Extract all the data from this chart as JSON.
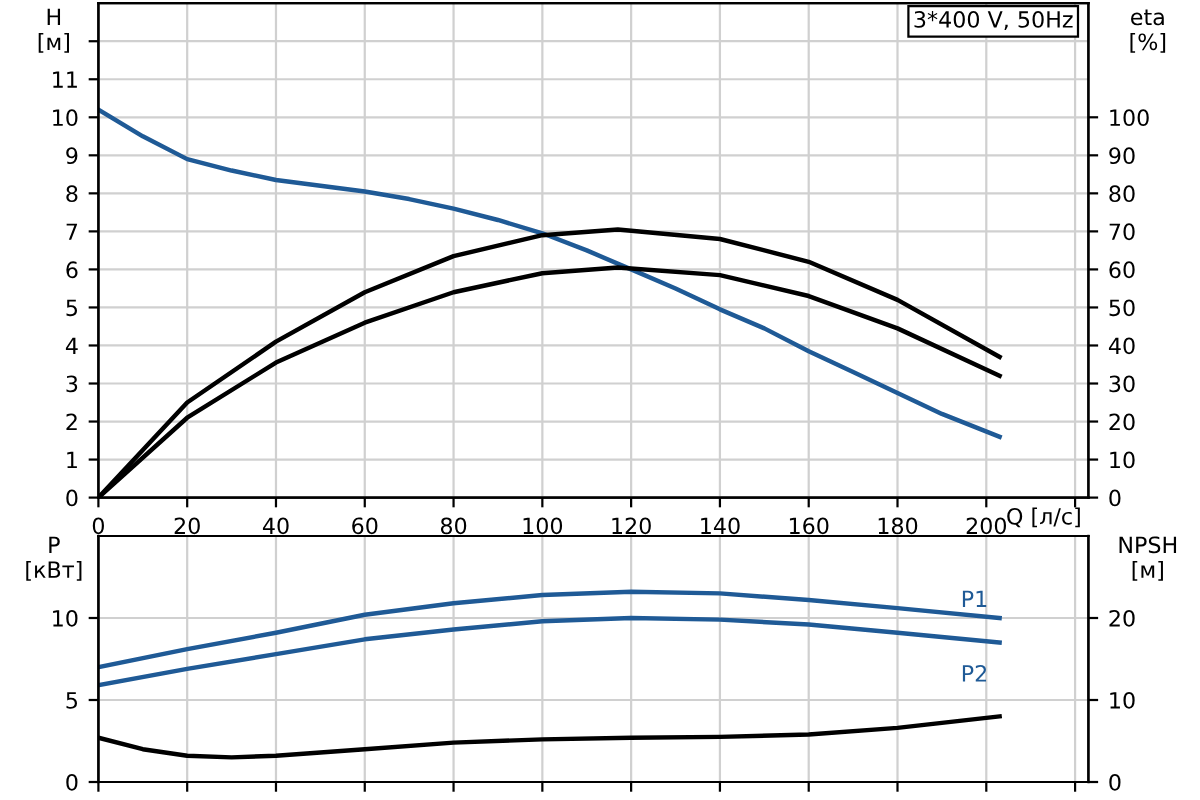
{
  "chart_data": [
    {
      "type": "line",
      "ylabel": "H\n[м]",
      "y2label": "eta\n[%]",
      "xlabel": "Q [л/с]",
      "annotations": [
        "3*400 V, 50Hz"
      ],
      "xlim": [
        0,
        223
      ],
      "xticks": [
        0,
        20,
        40,
        60,
        80,
        100,
        120,
        140,
        160,
        180,
        200,
        {
          "value": 220,
          "label": null
        }
      ],
      "ylim": [
        0,
        13
      ],
      "yticks": [
        0,
        1,
        2,
        3,
        4,
        5,
        6,
        7,
        8,
        9,
        10,
        11,
        {
          "value": 12,
          "label": null
        }
      ],
      "y2lim": [
        0,
        130
      ],
      "y2ticks": [
        0,
        10,
        20,
        30,
        40,
        50,
        60,
        70,
        80,
        90,
        100
      ],
      "grid": true,
      "legend": false,
      "series": [
        {
          "color": "#1f5a96",
          "x": [
            0,
            10,
            20,
            30,
            40,
            50,
            60,
            70,
            80,
            90,
            100,
            110,
            120,
            130,
            140,
            150,
            160,
            170,
            180,
            190,
            203
          ],
          "values": [
            10.2,
            9.5,
            8.9,
            8.6,
            8.35,
            8.2,
            8.05,
            7.85,
            7.6,
            7.3,
            6.95,
            6.5,
            6.0,
            5.5,
            4.95,
            4.45,
            3.85,
            3.3,
            2.75,
            2.2,
            1.6
          ]
        },
        {
          "color": "#000000",
          "axis": "y2",
          "x": [
            0,
            20,
            40,
            60,
            80,
            100,
            117,
            140,
            160,
            180,
            203
          ],
          "values": [
            0,
            25,
            41,
            54,
            63.5,
            69,
            70.5,
            68,
            62,
            52,
            37
          ]
        },
        {
          "color": "#000000",
          "axis": "y2",
          "x": [
            0,
            20,
            40,
            60,
            80,
            100,
            117,
            140,
            160,
            180,
            203
          ],
          "values": [
            0,
            21,
            35.5,
            46,
            54,
            59,
            60.5,
            58.5,
            53,
            44.5,
            32
          ]
        }
      ]
    },
    {
      "type": "line",
      "ylabel": "P\n[кВт]",
      "y2label": "NPSH\n[м]",
      "xlim": [
        0,
        223
      ],
      "xticks": [
        0,
        20,
        40,
        60,
        80,
        100,
        120,
        140,
        160,
        180,
        200,
        {
          "value": 220,
          "label": null
        }
      ],
      "ylim": [
        0,
        15
      ],
      "yticks": [
        0,
        5,
        10
      ],
      "y2lim": [
        0,
        30
      ],
      "y2ticks": [
        0,
        10,
        20
      ],
      "grid": true,
      "legend": false,
      "tick_labels": "y",
      "series": [
        {
          "name": "P1",
          "color": "#1f5a96",
          "x": [
            0,
            20,
            40,
            60,
            80,
            100,
            120,
            140,
            160,
            180,
            203
          ],
          "values": [
            7,
            8.1,
            9.1,
            10.2,
            10.9,
            11.4,
            11.6,
            11.5,
            11.1,
            10.6,
            10
          ]
        },
        {
          "name": "P2",
          "color": "#1f5a96",
          "x": [
            0,
            20,
            40,
            60,
            80,
            100,
            120,
            140,
            160,
            180,
            203
          ],
          "values": [
            5.9,
            6.9,
            7.8,
            8.7,
            9.3,
            9.8,
            10,
            9.9,
            9.6,
            9.1,
            8.5
          ]
        },
        {
          "color": "#000000",
          "axis": "y2",
          "x": [
            0,
            10,
            20,
            30,
            40,
            60,
            80,
            100,
            120,
            140,
            160,
            180,
            203
          ],
          "values": [
            5.4,
            4,
            3.2,
            3,
            3.2,
            4,
            4.8,
            5.2,
            5.4,
            5.5,
            5.8,
            6.6,
            8
          ]
        }
      ]
    }
  ]
}
